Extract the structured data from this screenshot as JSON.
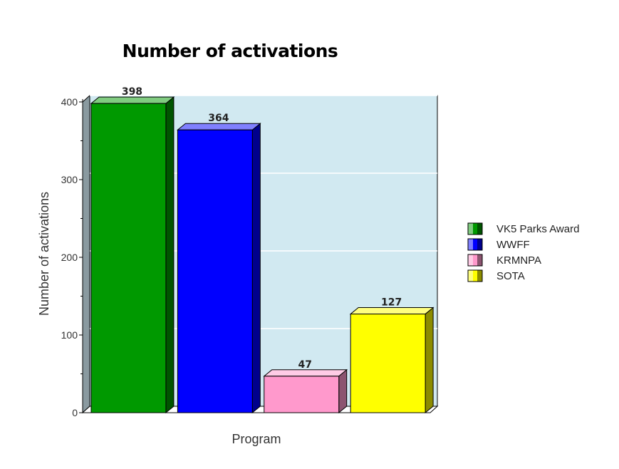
{
  "chart_data": {
    "type": "bar",
    "title": "Number of activations",
    "xlabel": "Program",
    "ylabel": "Number of activations",
    "ylim": [
      0,
      400
    ],
    "yticks": [
      0,
      100,
      200,
      300,
      400
    ],
    "grid": true,
    "legend_position": "right",
    "series": [
      {
        "name": "VK5 Parks Award",
        "value": 398,
        "color": "#009900"
      },
      {
        "name": "WWFF",
        "value": 364,
        "color": "#0000ff"
      },
      {
        "name": "KRMNPA",
        "value": 47,
        "color": "#ff99cc"
      },
      {
        "name": "SOTA",
        "value": 127,
        "color": "#ffff00"
      }
    ]
  }
}
